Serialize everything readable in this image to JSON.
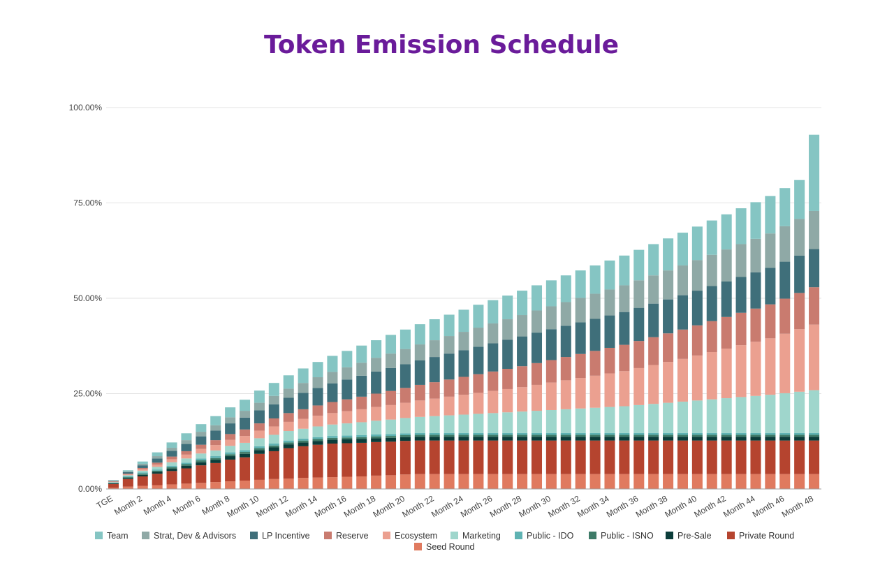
{
  "chart_data": {
    "type": "bar",
    "stacked": true,
    "title": "Token Emission Schedule",
    "xlabel": "",
    "ylabel": "",
    "ylim": [
      0,
      100
    ],
    "y_ticks": [
      "0.00%",
      "25.00%",
      "50.00%",
      "75.00%",
      "100.00%"
    ],
    "categories": [
      "TGE",
      "Month 1",
      "Month 2",
      "Month 3",
      "Month 4",
      "Month 5",
      "Month 6",
      "Month 7",
      "Month 8",
      "Month 9",
      "Month 10",
      "Month 11",
      "Month 12",
      "Month 13",
      "Month 14",
      "Month 15",
      "Month 16",
      "Month 17",
      "Month 18",
      "Month 19",
      "Month 20",
      "Month 21",
      "Month 22",
      "Month 23",
      "Month 24",
      "Month 25",
      "Month 26",
      "Month 27",
      "Month 28",
      "Month 29",
      "Month 30",
      "Month 31",
      "Month 32",
      "Month 33",
      "Month 34",
      "Month 35",
      "Month 36",
      "Month 37",
      "Month 38",
      "Month 39",
      "Month 40",
      "Month 41",
      "Month 42",
      "Month 43",
      "Month 44",
      "Month 45",
      "Month 46",
      "Month 47",
      "Month 48"
    ],
    "shown_x_ticks": [
      "TGE",
      "Month 2",
      "Month 4",
      "Month 6",
      "Month 8",
      "Month 10",
      "Month 12",
      "Month 14",
      "Month 16",
      "Month 18",
      "Month 20",
      "Month 22",
      "Month 24",
      "Month 26",
      "Month 28",
      "Month 30",
      "Month 32",
      "Month 34",
      "Month 36",
      "Month 38",
      "Month 40",
      "Month 42",
      "Month 44",
      "Month 46",
      "Month 48"
    ],
    "grid": true,
    "legend": "bottom",
    "series": [
      {
        "name": "Seed Round",
        "color": "#e07a5f",
        "values": [
          0.3,
          0.6,
          0.8,
          1,
          1.2,
          1.4,
          1.6,
          1.8,
          2,
          2.2,
          2.4,
          2.6,
          2.7,
          2.9,
          3,
          3.1,
          3.2,
          3.3,
          3.5,
          3.6,
          3.8,
          3.9,
          3.9,
          3.9,
          3.9,
          3.9,
          3.9,
          3.9,
          3.9,
          3.9,
          3.9,
          3.9,
          3.9,
          3.9,
          3.9,
          3.9,
          3.9,
          3.9,
          3.9,
          3.9,
          3.9,
          3.9,
          3.9,
          3.9,
          3.9,
          3.9,
          3.9,
          3.9,
          3.9
        ]
      },
      {
        "name": "Private Round",
        "color": "#b5442f",
        "values": [
          1,
          2,
          2.5,
          3,
          3.5,
          4,
          4.6,
          5,
          5.7,
          6.1,
          6.8,
          7.3,
          8,
          8.3,
          8.6,
          8.8,
          8.8,
          8.8,
          8.8,
          8.8,
          8.8,
          8.8,
          8.8,
          8.8,
          8.8,
          8.8,
          8.8,
          8.8,
          8.8,
          8.8,
          8.8,
          8.8,
          8.8,
          8.8,
          8.8,
          8.8,
          8.8,
          8.8,
          8.8,
          8.8,
          8.8,
          8.8,
          8.8,
          8.8,
          8.8,
          8.8,
          8.8,
          8.8,
          8.8
        ]
      },
      {
        "name": "Pre-Sale",
        "color": "#0b3d3a",
        "values": [
          0.2,
          0.3,
          0.4,
          0.5,
          0.6,
          0.7,
          0.8,
          0.8,
          0.9,
          0.9,
          1,
          1,
          1,
          1,
          1,
          1,
          1,
          1,
          1,
          1,
          1,
          1,
          1,
          1,
          1,
          1,
          1,
          1,
          1,
          1,
          1,
          1,
          1,
          1,
          1,
          1,
          1,
          1,
          1,
          1,
          1,
          1,
          1,
          1,
          1,
          1,
          1,
          1,
          1
        ]
      },
      {
        "name": "Public - ISNO",
        "color": "#3e7b68",
        "values": [
          0.1,
          0.2,
          0.3,
          0.3,
          0.4,
          0.4,
          0.5,
          0.5,
          0.5,
          0.5,
          0.5,
          0.5,
          0.5,
          0.5,
          0.5,
          0.5,
          0.5,
          0.5,
          0.5,
          0.5,
          0.5,
          0.5,
          0.5,
          0.5,
          0.5,
          0.5,
          0.5,
          0.5,
          0.5,
          0.5,
          0.5,
          0.5,
          0.5,
          0.5,
          0.5,
          0.5,
          0.5,
          0.5,
          0.5,
          0.5,
          0.5,
          0.5,
          0.5,
          0.5,
          0.5,
          0.5,
          0.5,
          0.5,
          0.5
        ]
      },
      {
        "name": "Public - IDO",
        "color": "#5fb3b3",
        "values": [
          0.1,
          0.2,
          0.3,
          0.3,
          0.4,
          0.4,
          0.5,
          0.5,
          0.5,
          0.5,
          0.5,
          0.5,
          0.5,
          0.5,
          0.5,
          0.5,
          0.5,
          0.5,
          0.5,
          0.5,
          0.5,
          0.5,
          0.5,
          0.5,
          0.5,
          0.5,
          0.5,
          0.5,
          0.5,
          0.5,
          0.5,
          0.5,
          0.5,
          0.5,
          0.5,
          0.5,
          0.5,
          0.5,
          0.5,
          0.5,
          0.5,
          0.5,
          0.5,
          0.5,
          0.5,
          0.5,
          0.5,
          0.5,
          0.5
        ]
      },
      {
        "name": "Marketing",
        "color": "#9fd6cc",
        "values": [
          0.1,
          0.3,
          0.5,
          0.7,
          0.9,
          1.1,
          1.3,
          1.5,
          1.7,
          1.9,
          2.1,
          2.3,
          2.5,
          2.6,
          2.8,
          3,
          3.2,
          3.4,
          3.6,
          3.8,
          4,
          4.2,
          4.4,
          4.6,
          4.8,
          5,
          5.2,
          5.4,
          5.6,
          5.8,
          6,
          6.2,
          6.4,
          6.6,
          6.8,
          7,
          7.3,
          7.6,
          7.9,
          8.2,
          8.5,
          8.8,
          9.1,
          9.4,
          9.7,
          10,
          10.4,
          10.8,
          11.2
        ]
      },
      {
        "name": "Ecosystem",
        "color": "#eba090",
        "values": [
          0.1,
          0.2,
          0.4,
          0.6,
          0.8,
          1,
          1.2,
          1.4,
          1.6,
          1.8,
          2,
          2.2,
          2.4,
          2.6,
          2.8,
          3,
          3.2,
          3.4,
          3.6,
          3.8,
          4,
          4.3,
          4.6,
          4.9,
          5.2,
          5.5,
          5.8,
          6.1,
          6.4,
          6.8,
          7.2,
          7.6,
          8,
          8.4,
          8.8,
          9.2,
          9.7,
          10.2,
          10.7,
          11.2,
          11.8,
          12.4,
          13,
          13.6,
          14.2,
          14.8,
          15.6,
          16.4,
          17.2
        ]
      },
      {
        "name": "Reserve",
        "color": "#c97b6f",
        "values": [
          0.1,
          0.2,
          0.3,
          0.5,
          0.7,
          0.9,
          1.1,
          1.3,
          1.5,
          1.7,
          1.9,
          2.1,
          2.3,
          2.5,
          2.7,
          2.9,
          3.1,
          3.3,
          3.5,
          3.7,
          3.9,
          4.1,
          4.3,
          4.5,
          4.7,
          4.9,
          5.1,
          5.3,
          5.5,
          5.7,
          5.9,
          6.1,
          6.3,
          6.5,
          6.7,
          6.9,
          7.1,
          7.3,
          7.5,
          7.7,
          7.9,
          8.1,
          8.3,
          8.5,
          8.7,
          8.9,
          9.2,
          9.5,
          9.8
        ]
      },
      {
        "name": "LP Incentive",
        "color": "#3f6f7a",
        "values": [
          0.1,
          0.4,
          0.7,
          1.1,
          1.5,
          1.9,
          2.2,
          2.5,
          2.8,
          3.1,
          3.4,
          3.7,
          4,
          4.3,
          4.6,
          4.9,
          5.2,
          5.5,
          5.8,
          6,
          6.2,
          6.4,
          6.6,
          6.8,
          7,
          7.2,
          7.4,
          7.6,
          7.8,
          8,
          8.1,
          8.2,
          8.3,
          8.4,
          8.5,
          8.6,
          8.7,
          8.8,
          8.9,
          9,
          9.1,
          9.2,
          9.3,
          9.4,
          9.5,
          9.6,
          9.7,
          9.8,
          10
        ]
      },
      {
        "name": "Strat, Dev & Advisors",
        "color": "#8fa9a6",
        "values": [
          0.1,
          0.2,
          0.4,
          0.6,
          0.8,
          1,
          1.2,
          1.4,
          1.6,
          1.8,
          2,
          2.2,
          2.4,
          2.6,
          2.8,
          3,
          3.2,
          3.4,
          3.6,
          3.8,
          4,
          4.2,
          4.4,
          4.6,
          4.8,
          5,
          5.2,
          5.4,
          5.6,
          5.8,
          6,
          6.2,
          6.4,
          6.6,
          6.8,
          7,
          7.2,
          7.4,
          7.6,
          7.8,
          8,
          8.2,
          8.4,
          8.6,
          8.8,
          9,
          9.3,
          9.6,
          10
        ]
      },
      {
        "name": "Team",
        "color": "#85c5c3",
        "values": [
          0.1,
          0.3,
          0.6,
          1,
          1.4,
          1.8,
          2,
          2.4,
          2.6,
          2.9,
          3.2,
          3.4,
          3.5,
          3.8,
          4,
          4.2,
          4.3,
          4.5,
          4.6,
          4.9,
          5.1,
          5.3,
          5.5,
          5.6,
          5.8,
          6,
          6.1,
          6.2,
          6.4,
          6.6,
          6.8,
          7,
          7.2,
          7.4,
          7.6,
          7.8,
          8,
          8.2,
          8.4,
          8.6,
          8.8,
          9,
          9.2,
          9.4,
          9.6,
          9.8,
          10,
          10.2,
          20
        ]
      }
    ],
    "legend_order": [
      "Team",
      "Strat, Dev & Advisors",
      "LP Incentive",
      "Reserve",
      "Ecosystem",
      "Marketing",
      "Public - IDO",
      "Public - ISNO",
      "Pre-Sale",
      "Private Round",
      "Seed Round"
    ]
  }
}
